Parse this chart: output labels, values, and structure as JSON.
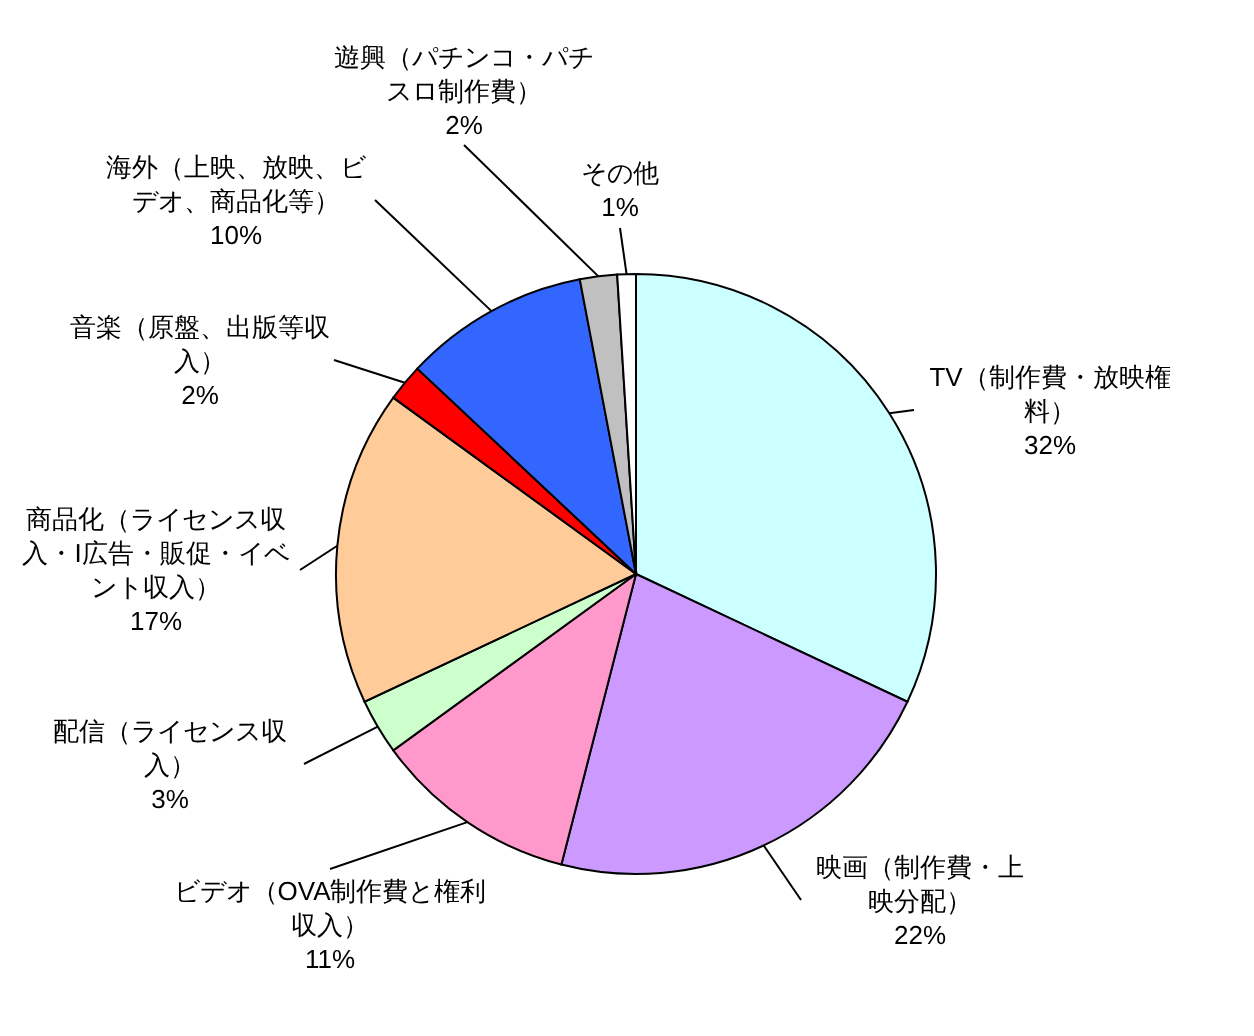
{
  "chart_data": {
    "type": "pie",
    "categories": [
      "TV（制作費・放映権料）",
      "映画（制作費・上映分配）",
      "ビデオ（OVA制作費と権利収入）",
      "配信（ライセンス収入）",
      "商品化（ライセンス収入・I広告・販促・イベント収入）",
      "音楽（原盤、出版等収入）",
      "海外（上映、放映、ビデオ、商品化等）",
      "遊興（パチンコ・パチスロ制作費）",
      "その他"
    ],
    "values": [
      32,
      22,
      11,
      3,
      17,
      2,
      10,
      2,
      1
    ],
    "value_labels": [
      "32%",
      "22%",
      "11%",
      "3%",
      "17%",
      "2%",
      "10%",
      "2%",
      "1%"
    ],
    "colors": [
      "#ccffff",
      "#cc99ff",
      "#ff99cc",
      "#ccffcc",
      "#ffcc99",
      "#ff0000",
      "#3366ff",
      "#c0c0c0",
      "#ffffff"
    ]
  }
}
